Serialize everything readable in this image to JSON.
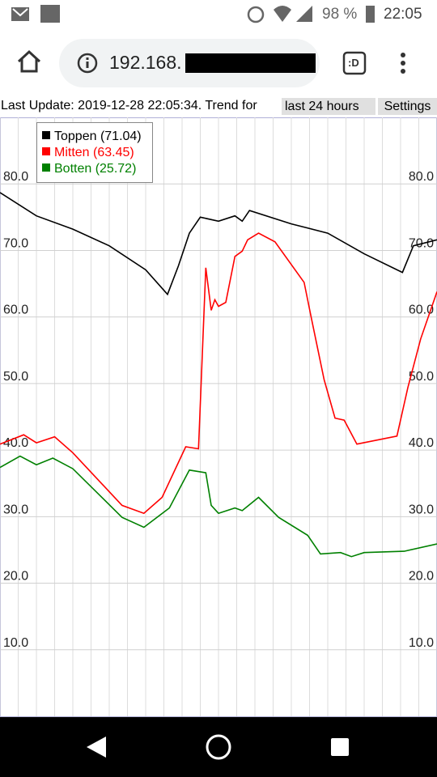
{
  "status_bar": {
    "battery": "98 %",
    "time": "22:05"
  },
  "browser": {
    "url": "192.168.",
    "tab_button": ":D"
  },
  "header": {
    "text": "Last Update: 2019-12-28 22:05:34. Trend for",
    "range_select": "last 24 hours",
    "settings_button": "Settings"
  },
  "chart_data": {
    "type": "line",
    "grid": true,
    "xlim": [
      0,
      24
    ],
    "xticks": [
      0,
      1,
      2,
      3,
      4,
      5,
      6,
      7,
      8,
      9,
      10,
      11,
      12,
      13,
      14,
      15,
      16,
      17,
      18,
      19,
      20,
      21,
      22,
      23,
      24
    ],
    "ylim": [
      0,
      90
    ],
    "yticks": [
      {
        "value": 10,
        "label": "10.0"
      },
      {
        "value": 20,
        "label": "20.0"
      },
      {
        "value": 30,
        "label": "30.0"
      },
      {
        "value": 40,
        "label": "40.0"
      },
      {
        "value": 50,
        "label": "50.0"
      },
      {
        "value": 60,
        "label": "60.0"
      },
      {
        "value": 70,
        "label": "70.0"
      },
      {
        "value": 80,
        "label": "80.0"
      }
    ],
    "y2lim": [
      0,
      90
    ],
    "y2ticks": [
      {
        "value": 10,
        "label": "10.0"
      },
      {
        "value": 20,
        "label": "20.0"
      },
      {
        "value": 30,
        "label": "30.0"
      },
      {
        "value": 40,
        "label": "40.0"
      },
      {
        "value": 50,
        "label": "50.0"
      },
      {
        "value": 60,
        "label": "60.0"
      },
      {
        "value": 70,
        "label": "70.0"
      },
      {
        "value": 80,
        "label": "80.0"
      }
    ],
    "series": [
      {
        "name": "Toppen (71.04)",
        "color": "#000000",
        "x": [
          0,
          2,
          4,
          6,
          8,
          9.2,
          9.8,
          10.4,
          11,
          12,
          12.9,
          13.3,
          13.7,
          16,
          18,
          20,
          22.1,
          22.7,
          24
        ],
        "values": [
          78.7,
          75.2,
          73.2,
          70.7,
          67.1,
          63.4,
          67.7,
          72.6,
          75,
          74.4,
          75.2,
          74.4,
          76,
          74,
          72.6,
          69.5,
          66.7,
          70.7,
          71.6
        ]
      },
      {
        "name": "Mitten (63.45)",
        "color": "#ff0000",
        "x": [
          0,
          1.3,
          2,
          3,
          4,
          6.7,
          7.9,
          8.9,
          10.2,
          10.9,
          11.3,
          11.6,
          11.8,
          12,
          12.4,
          12.9,
          13.3,
          13.6,
          14.2,
          15.1,
          16.7,
          17.1,
          17.8,
          18.4,
          18.9,
          19.6,
          21.8,
          22.4,
          23.1,
          24
        ],
        "values": [
          40.9,
          42.3,
          41.1,
          42,
          39.6,
          31.7,
          30.5,
          32.9,
          40.5,
          40.2,
          67.4,
          61,
          62.6,
          61.6,
          62.2,
          69.1,
          69.9,
          71.6,
          72.6,
          71.3,
          65.2,
          59.8,
          50.6,
          44.8,
          44.5,
          40.9,
          42.1,
          49.4,
          56.7,
          63.8
        ]
      },
      {
        "name": "Botten (25.72)",
        "color": "#008000",
        "x": [
          0,
          1.1,
          2,
          2.9,
          4,
          6.7,
          7.9,
          9.3,
          10.4,
          11.3,
          11.6,
          12,
          12.9,
          13.3,
          14.2,
          15.3,
          16.9,
          17.6,
          18.7,
          19.3,
          20,
          22.2,
          24
        ],
        "values": [
          37.4,
          39.1,
          37.8,
          38.8,
          37.2,
          29.9,
          28.4,
          31.3,
          37,
          36.6,
          31.7,
          30.5,
          31.3,
          30.9,
          32.9,
          29.9,
          27.2,
          24.4,
          24.6,
          24,
          24.6,
          24.8,
          25.9
        ]
      }
    ]
  }
}
